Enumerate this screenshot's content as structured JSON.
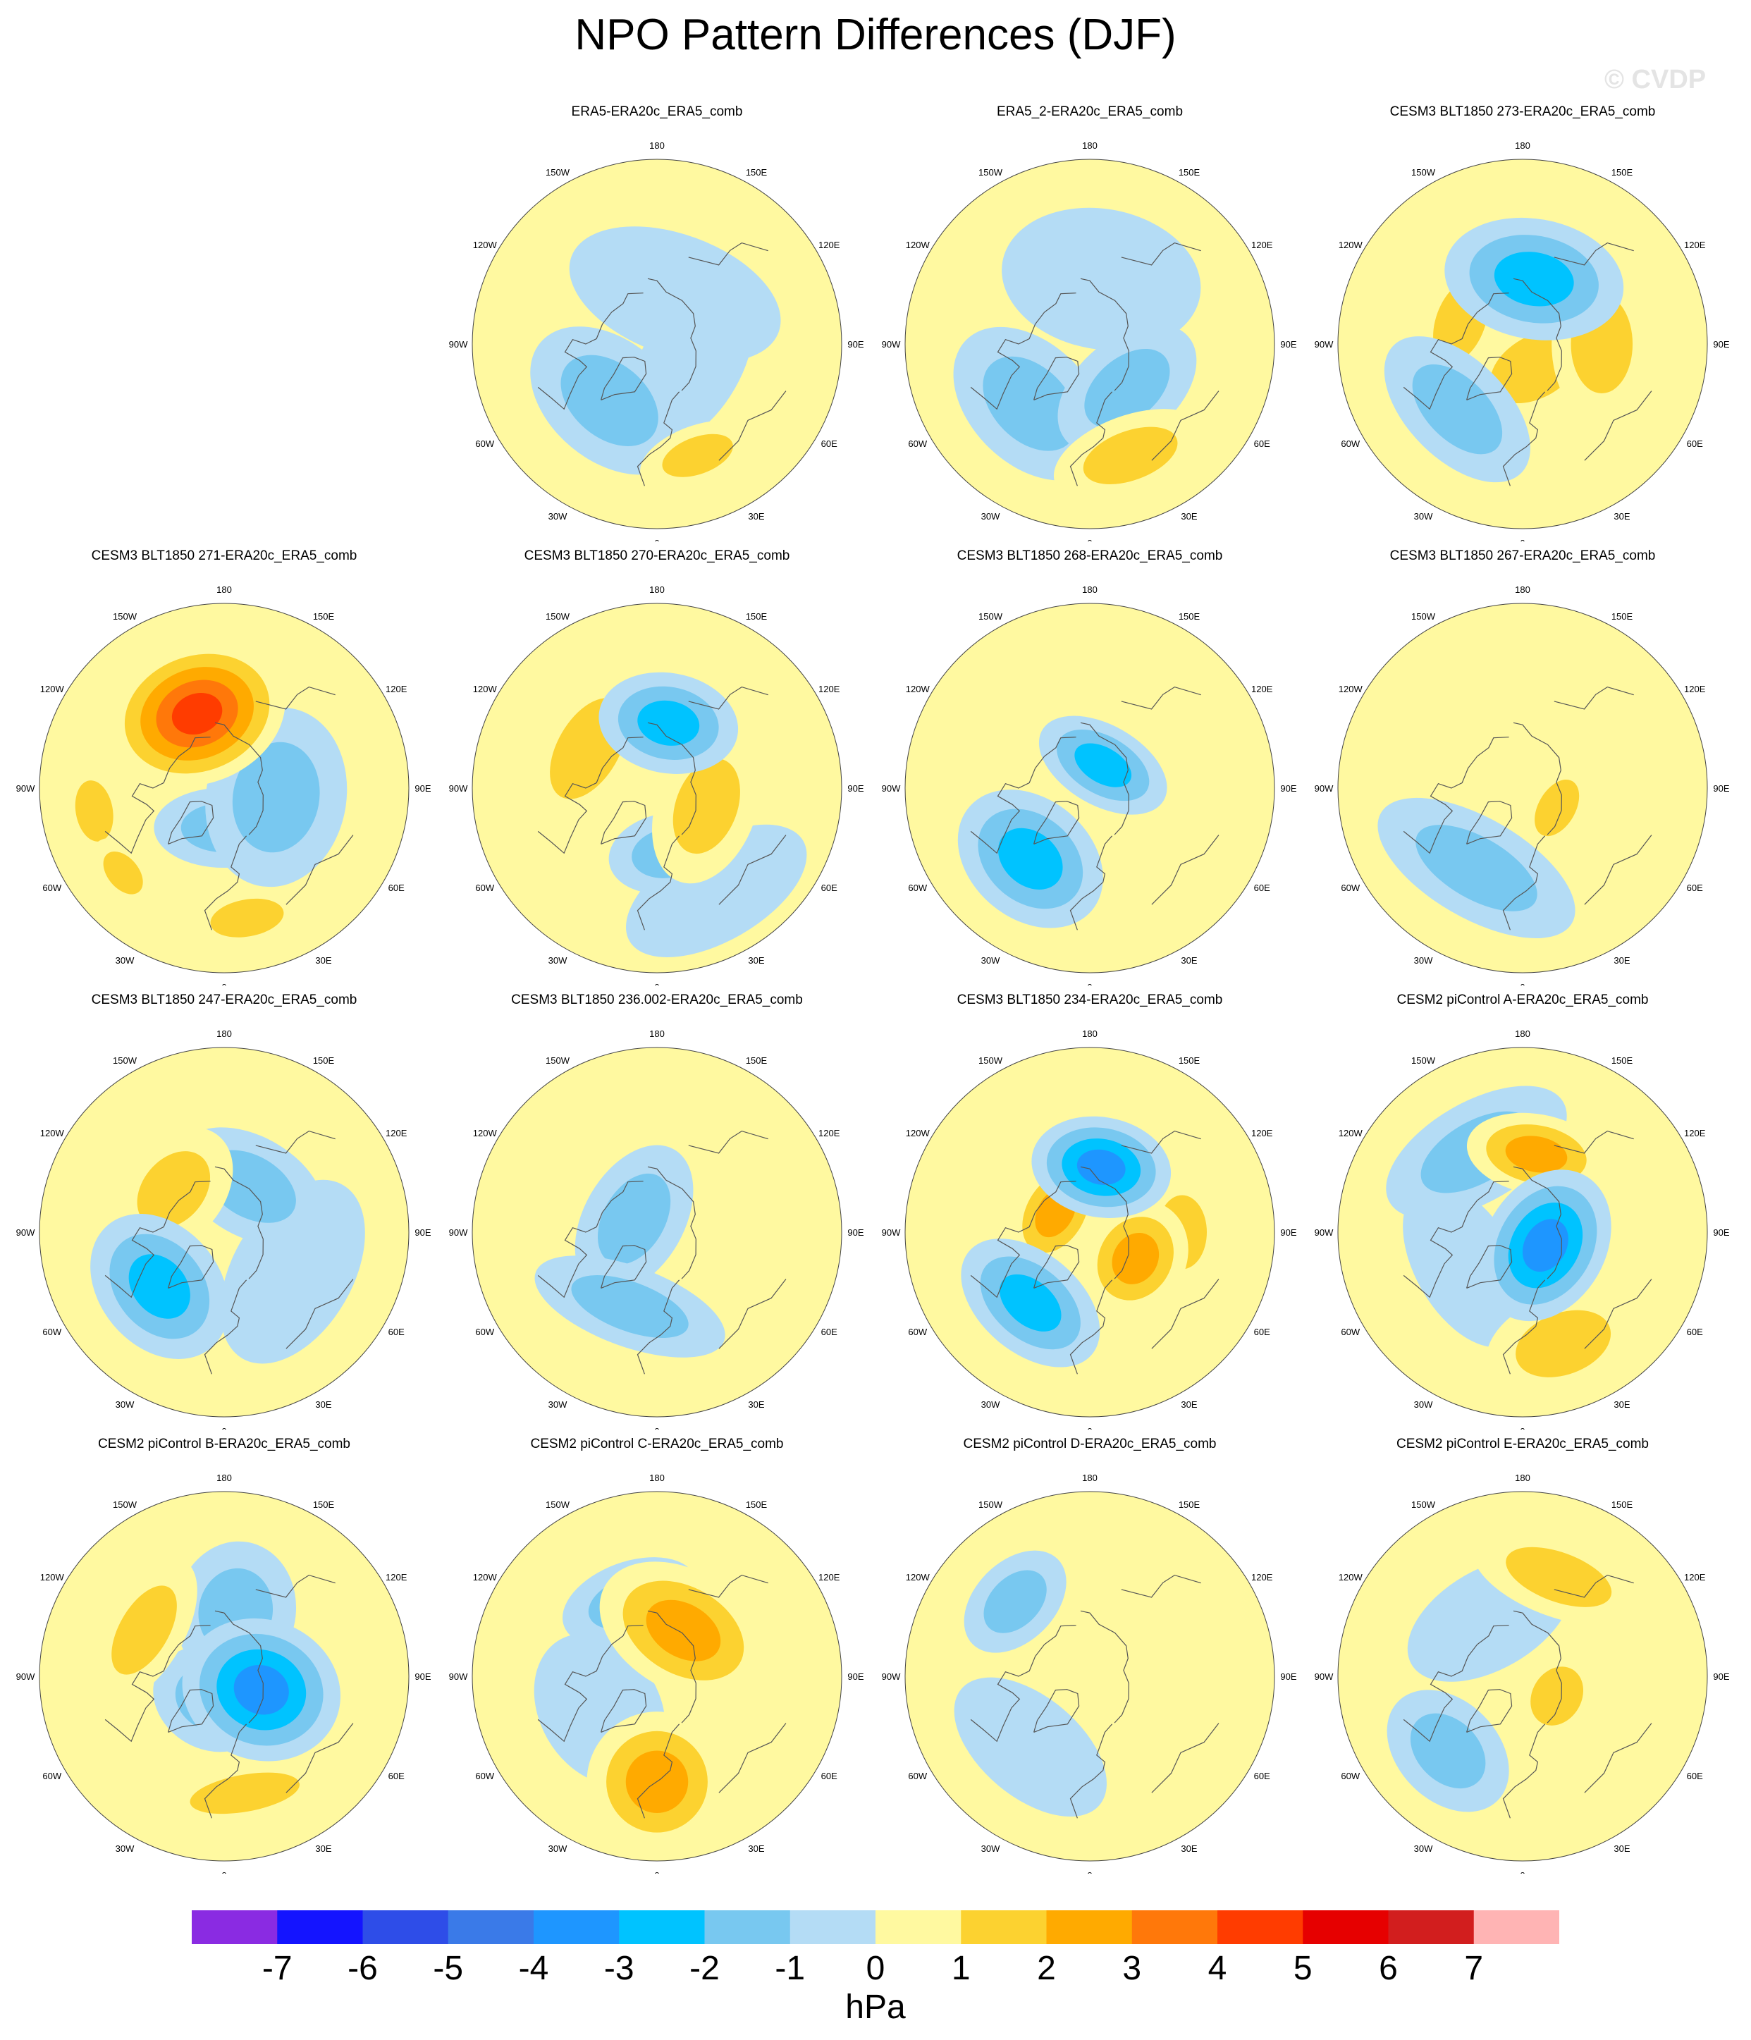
{
  "title": "NPO Pattern Differences (DJF)",
  "watermark": "© CVDP",
  "units": "hPa",
  "colors": {
    "scale": [
      "#8a2be2",
      "#1414ff",
      "#2e4de8",
      "#3a7ae8",
      "#1e96ff",
      "#00c3ff",
      "#78c8f0",
      "#b4dcf5",
      "#fff9a0",
      "#fcd230",
      "#ffaa00",
      "#ff780a",
      "#ff3c00",
      "#e60000",
      "#d21e1e",
      "#ffb4b4"
    ],
    "land_outline": "#555555"
  },
  "colorbar": {
    "labels": [
      "-7",
      "-6",
      "-5",
      "-4",
      "-3",
      "-2",
      "-1",
      "0",
      "1",
      "2",
      "3",
      "4",
      "5",
      "6",
      "7"
    ]
  },
  "lon_labels": {
    "top": "180",
    "bottom": "0",
    "upper_left": "150W",
    "upper_right": "150E",
    "left_upper": "120W",
    "right_upper": "120E",
    "left": "90W",
    "right": "90E",
    "left_lower": "60W",
    "right_lower": "60E",
    "lower_left": "30W",
    "lower_right": "30E"
  },
  "panels": [
    {
      "title": "ERA5-ERA20c_ERA5_comb",
      "blobs": [
        {
          "lat": 62,
          "lon": -40,
          "hw": 18,
          "hh": 12,
          "v": -1.5
        },
        {
          "lat": 55,
          "lon": -120,
          "hw": 20,
          "hh": 10,
          "v": 0.5
        },
        {
          "lat": 45,
          "lon": 20,
          "hw": 12,
          "hh": 6,
          "v": 1.6
        },
        {
          "lat": 70,
          "lon": 160,
          "hw": 22,
          "hh": 12,
          "v": -0.6
        },
        {
          "lat": 75,
          "lon": 60,
          "hw": 18,
          "hh": 10,
          "v": -0.6
        }
      ]
    },
    {
      "title": "ERA5_2-ERA20c_ERA5_comb",
      "blobs": [
        {
          "lat": 58,
          "lon": -45,
          "hw": 18,
          "hh": 12,
          "v": -1.6
        },
        {
          "lat": 68,
          "lon": 40,
          "hw": 16,
          "hh": 10,
          "v": -1.8
        },
        {
          "lat": 45,
          "lon": 20,
          "hw": 16,
          "hh": 8,
          "v": 1.8
        },
        {
          "lat": 65,
          "lon": 170,
          "hw": 20,
          "hh": 14,
          "v": -0.6
        },
        {
          "lat": 60,
          "lon": -120,
          "hw": 16,
          "hh": 10,
          "v": 0.5
        }
      ]
    },
    {
      "title": "CESM3 BLT1850 273-ERA20c_ERA5_comb",
      "blobs": [
        {
          "lat": 65,
          "lon": 170,
          "hw": 18,
          "hh": 12,
          "v": -2.7
        },
        {
          "lat": 55,
          "lon": -45,
          "hw": 18,
          "hh": 10,
          "v": -1.6
        },
        {
          "lat": 60,
          "lon": 90,
          "hw": 16,
          "hh": 10,
          "v": 1.5
        },
        {
          "lat": 65,
          "lon": -110,
          "hw": 14,
          "hh": 8,
          "v": 1.4
        },
        {
          "lat": 80,
          "lon": 30,
          "hw": 16,
          "hh": 10,
          "v": 1.2
        }
      ]
    },
    {
      "title": "CESM3 BLT1850 271-ERA20c_ERA5_comb",
      "blobs": [
        {
          "lat": 60,
          "lon": -160,
          "hw": 18,
          "hh": 14,
          "v": 4.2
        },
        {
          "lat": 70,
          "lon": 80,
          "hw": 18,
          "hh": 14,
          "v": -1.6
        },
        {
          "lat": 75,
          "lon": 0,
          "hw": 14,
          "hh": 8,
          "v": -1.5
        },
        {
          "lat": 40,
          "lon": 10,
          "hw": 12,
          "hh": 6,
          "v": 1.6
        },
        {
          "lat": 40,
          "lon": -80,
          "hw": 10,
          "hh": 6,
          "v": 1.3
        },
        {
          "lat": 40,
          "lon": -50,
          "hw": 8,
          "hh": 5,
          "v": 1.3
        }
      ]
    },
    {
      "title": "CESM3 BLT1850 270-ERA20c_ERA5_comb",
      "blobs": [
        {
          "lat": 65,
          "lon": 170,
          "hw": 14,
          "hh": 10,
          "v": -2.5
        },
        {
          "lat": 60,
          "lon": -120,
          "hw": 18,
          "hh": 10,
          "v": 1.6
        },
        {
          "lat": 70,
          "lon": 70,
          "hw": 16,
          "hh": 10,
          "v": 1.8
        },
        {
          "lat": 65,
          "lon": 10,
          "hw": 12,
          "hh": 8,
          "v": -1.2
        },
        {
          "lat": 45,
          "lon": 30,
          "hw": 20,
          "hh": 10,
          "v": -0.6
        }
      ]
    },
    {
      "title": "CESM3 BLT1850 268-ERA20c_ERA5_comb",
      "blobs": [
        {
          "lat": 55,
          "lon": -40,
          "hw": 16,
          "hh": 12,
          "v": -2.6
        },
        {
          "lat": 80,
          "lon": 150,
          "hw": 14,
          "hh": 8,
          "v": -2.0
        },
        {
          "lat": 65,
          "lon": -130,
          "hw": 20,
          "hh": 12,
          "v": 0.5
        },
        {
          "lat": 55,
          "lon": 150,
          "hw": 20,
          "hh": 12,
          "v": 0.5
        },
        {
          "lat": 60,
          "lon": 30,
          "hw": 12,
          "hh": 10,
          "v": 0.5
        }
      ]
    },
    {
      "title": "CESM3 BLT1850 267-ERA20c_ERA5_comb",
      "blobs": [
        {
          "lat": 55,
          "lon": -30,
          "hw": 22,
          "hh": 10,
          "v": -1.6
        },
        {
          "lat": 75,
          "lon": 60,
          "hw": 10,
          "hh": 6,
          "v": 1.3
        },
        {
          "lat": 60,
          "lon": 175,
          "hw": 22,
          "hh": 12,
          "v": 0.5
        },
        {
          "lat": 55,
          "lon": -130,
          "hw": 16,
          "hh": 10,
          "v": 0.5
        },
        {
          "lat": 40,
          "lon": 60,
          "hw": 20,
          "hh": 8,
          "v": 0.5
        }
      ]
    },
    {
      "title": "CESM3 BLT1850 247-ERA20c_ERA5_comb",
      "blobs": [
        {
          "lat": 58,
          "lon": -50,
          "hw": 16,
          "hh": 12,
          "v": -2.6
        },
        {
          "lat": 65,
          "lon": -130,
          "hw": 14,
          "hh": 10,
          "v": 1.5
        },
        {
          "lat": 70,
          "lon": 150,
          "hw": 16,
          "hh": 10,
          "v": -1.2
        },
        {
          "lat": 60,
          "lon": 60,
          "hw": 20,
          "hh": 12,
          "v": -0.6
        },
        {
          "lat": 45,
          "lon": 0,
          "hw": 20,
          "hh": 8,
          "v": 0.5
        }
      ]
    },
    {
      "title": "CESM3 BLT1850 236.002-ERA20c_ERA5_comb",
      "blobs": [
        {
          "lat": 60,
          "lon": -20,
          "hw": 20,
          "hh": 8,
          "v": -1.5
        },
        {
          "lat": 80,
          "lon": -120,
          "hw": 16,
          "hh": 10,
          "v": -1.2
        },
        {
          "lat": 65,
          "lon": 90,
          "hw": 20,
          "hh": 12,
          "v": 0.5
        },
        {
          "lat": 55,
          "lon": -120,
          "hw": 16,
          "hh": 10,
          "v": 0.5
        },
        {
          "lat": 60,
          "lon": 170,
          "hw": 18,
          "hh": 10,
          "v": 0.5
        }
      ]
    },
    {
      "title": "CESM3 BLT1850 234-ERA20c_ERA5_comb",
      "blobs": [
        {
          "lat": 65,
          "lon": 170,
          "hw": 14,
          "hh": 10,
          "v": -3.6
        },
        {
          "lat": 55,
          "lon": -40,
          "hw": 16,
          "hh": 10,
          "v": -2.6
        },
        {
          "lat": 75,
          "lon": -120,
          "hw": 12,
          "hh": 8,
          "v": 2.5
        },
        {
          "lat": 70,
          "lon": 60,
          "hw": 12,
          "hh": 10,
          "v": 2.0
        },
        {
          "lat": 55,
          "lon": 90,
          "hw": 12,
          "hh": 8,
          "v": 1.4
        }
      ]
    },
    {
      "title": "CESM2 piControl A-ERA20c_ERA5_comb",
      "blobs": [
        {
          "lat": 60,
          "lon": 170,
          "hw": 14,
          "hh": 8,
          "v": 2.6
        },
        {
          "lat": 80,
          "lon": 60,
          "hw": 16,
          "hh": 12,
          "v": -3.0
        },
        {
          "lat": 45,
          "lon": 20,
          "hw": 16,
          "hh": 10,
          "v": 1.8
        },
        {
          "lat": 55,
          "lon": -150,
          "hw": 20,
          "hh": 10,
          "v": -1.5
        },
        {
          "lat": 65,
          "lon": -60,
          "hw": 18,
          "hh": 10,
          "v": -0.6
        }
      ]
    },
    {
      "title": "CESM2 piControl B-ERA20c_ERA5_comb",
      "blobs": [
        {
          "lat": 75,
          "lon": 70,
          "hw": 14,
          "hh": 16,
          "v": -3.0
        },
        {
          "lat": 80,
          "lon": -30,
          "hw": 12,
          "hh": 10,
          "v": -1.6
        },
        {
          "lat": 45,
          "lon": 10,
          "hw": 18,
          "hh": 6,
          "v": 1.6
        },
        {
          "lat": 55,
          "lon": -120,
          "hw": 16,
          "hh": 8,
          "v": 1.6
        },
        {
          "lat": 65,
          "lon": 170,
          "hw": 12,
          "hh": 14,
          "v": -1.2
        }
      ]
    },
    {
      "title": "CESM2 piControl C-ERA20c_ERA5_comb",
      "blobs": [
        {
          "lat": 70,
          "lon": 150,
          "hw": 18,
          "hh": 12,
          "v": 2.5
        },
        {
          "lat": 50,
          "lon": 0,
          "hw": 14,
          "hh": 14,
          "v": 2.0
        },
        {
          "lat": 60,
          "lon": -160,
          "hw": 14,
          "hh": 8,
          "v": -1.5
        },
        {
          "lat": 65,
          "lon": -60,
          "hw": 16,
          "hh": 12,
          "v": -0.6
        }
      ]
    },
    {
      "title": "CESM2 piControl D-ERA20c_ERA5_comb",
      "blobs": [
        {
          "lat": 50,
          "lon": -135,
          "hw": 12,
          "hh": 8,
          "v": -1.5
        },
        {
          "lat": 65,
          "lon": 60,
          "hw": 22,
          "hh": 14,
          "v": 0.5
        },
        {
          "lat": 70,
          "lon": 170,
          "hw": 20,
          "hh": 12,
          "v": 0.5
        },
        {
          "lat": 55,
          "lon": -40,
          "hw": 18,
          "hh": 10,
          "v": -0.6
        }
      ]
    },
    {
      "title": "CESM2 piControl E-ERA20c_ERA5_comb",
      "blobs": [
        {
          "lat": 50,
          "lon": 160,
          "hw": 18,
          "hh": 8,
          "v": 1.6
        },
        {
          "lat": 50,
          "lon": -45,
          "hw": 14,
          "hh": 10,
          "v": -1.6
        },
        {
          "lat": 75,
          "lon": 60,
          "hw": 10,
          "hh": 8,
          "v": 1.5
        },
        {
          "lat": 55,
          "lon": 30,
          "hw": 20,
          "hh": 10,
          "v": 0.5
        },
        {
          "lat": 65,
          "lon": -150,
          "hw": 18,
          "hh": 10,
          "v": -0.6
        }
      ]
    }
  ]
}
